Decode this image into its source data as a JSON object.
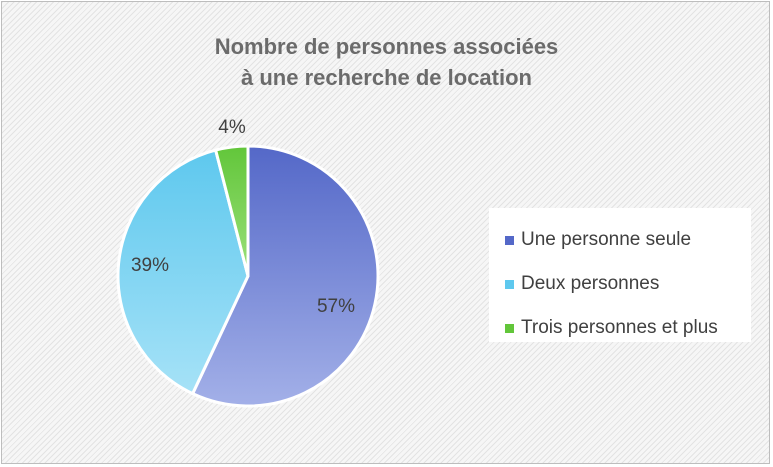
{
  "chart_data": {
    "type": "pie",
    "title_lines": [
      "Nombre de personnes associées",
      "à une recherche de location"
    ],
    "legend_position": "right",
    "slices": [
      {
        "name": "Une personne seule",
        "value": 57,
        "label": "57%",
        "color": "#5468c8",
        "color_light": "#a3b0e8"
      },
      {
        "name": "Deux personnes",
        "value": 39,
        "label": "39%",
        "color": "#5ec8ee",
        "color_light": "#a6e2f7"
      },
      {
        "name": "Trois personnes et plus",
        "value": 4,
        "label": "4%",
        "color": "#62c63a",
        "color_light": "#9be07b"
      }
    ]
  }
}
